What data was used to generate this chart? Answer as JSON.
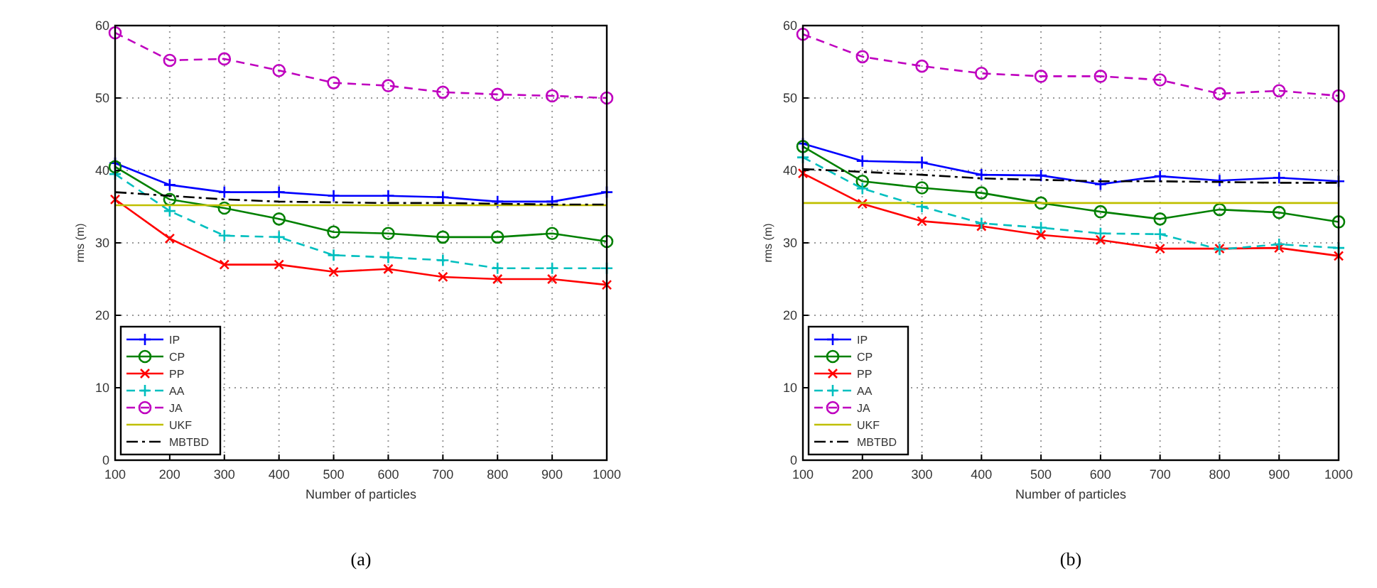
{
  "chart_data": [
    {
      "type": "line",
      "title": "(a)",
      "xlabel": "Number of particles",
      "ylabel": "rms (m)",
      "x": [
        100,
        200,
        300,
        400,
        500,
        600,
        700,
        800,
        900,
        1000
      ],
      "xlim": [
        100,
        1000
      ],
      "xticks": [
        100,
        200,
        300,
        400,
        500,
        600,
        700,
        800,
        900,
        1000
      ],
      "ylim": [
        0,
        60
      ],
      "yticks": [
        0,
        10,
        20,
        30,
        40,
        50,
        60
      ],
      "grid": true,
      "legend": "bottom left",
      "series": [
        {
          "name": "IP",
          "color": "#0000ff",
          "marker": "cross",
          "line_style": "solid",
          "values": [
            41,
            38,
            37,
            37,
            36.5,
            36.5,
            36.3,
            35.7,
            35.7,
            37
          ]
        },
        {
          "name": "CP",
          "color": "#008000",
          "marker": "circle",
          "line_style": "solid",
          "values": [
            40.5,
            36,
            34.8,
            33.3,
            31.5,
            31.3,
            30.8,
            30.8,
            31.3,
            30.2
          ]
        },
        {
          "name": "PP",
          "color": "#ff0000",
          "marker": "x",
          "line_style": "solid",
          "values": [
            36,
            30.6,
            27,
            27,
            26,
            26.4,
            25.3,
            25,
            25,
            24.2
          ]
        },
        {
          "name": "AA",
          "color": "#00bfbf",
          "marker": "cross",
          "line_style": "dashed",
          "values": [
            39.5,
            34.4,
            31,
            30.8,
            28.3,
            28,
            27.6,
            26.5,
            26.5,
            26.5
          ]
        },
        {
          "name": "JA",
          "color": "#bf00bf",
          "marker": "circle",
          "line_style": "dashed",
          "values": [
            59,
            55.2,
            55.4,
            53.8,
            52.1,
            51.7,
            50.8,
            50.5,
            50.3,
            50
          ]
        },
        {
          "name": "UKF",
          "color": "#bfbf00",
          "marker": "none",
          "line_style": "solid",
          "values": [
            35.2,
            35.2,
            35.2,
            35.2,
            35.2,
            35.2,
            35.2,
            35.2,
            35.2,
            35.2
          ]
        },
        {
          "name": "MBTBD",
          "color": "#000000",
          "marker": "none",
          "line_style": "dashdot",
          "values": [
            37,
            36.5,
            36,
            35.7,
            35.6,
            35.5,
            35.5,
            35.4,
            35.3,
            35.3
          ]
        }
      ]
    },
    {
      "type": "line",
      "title": "(b)",
      "xlabel": "Number of particles",
      "ylabel": "rms (m)",
      "x": [
        100,
        200,
        300,
        400,
        500,
        600,
        700,
        800,
        900,
        1000
      ],
      "xlim": [
        100,
        1000
      ],
      "xticks": [
        100,
        200,
        300,
        400,
        500,
        600,
        700,
        800,
        900,
        1000
      ],
      "ylim": [
        0,
        60
      ],
      "yticks": [
        0,
        10,
        20,
        30,
        40,
        50,
        60
      ],
      "grid": true,
      "legend": "bottom left",
      "series": [
        {
          "name": "IP",
          "color": "#0000ff",
          "marker": "cross",
          "line_style": "solid",
          "values": [
            43.7,
            41.3,
            41.1,
            39.4,
            39.3,
            38.1,
            39.2,
            38.6,
            39,
            38.5
          ]
        },
        {
          "name": "CP",
          "color": "#008000",
          "marker": "circle",
          "line_style": "solid",
          "values": [
            43.3,
            38.5,
            37.6,
            36.9,
            35.5,
            34.3,
            33.3,
            34.6,
            34.2,
            32.9
          ]
        },
        {
          "name": "PP",
          "color": "#ff0000",
          "marker": "x",
          "line_style": "solid",
          "values": [
            39.6,
            35.4,
            33,
            32.3,
            31.1,
            30.4,
            29.2,
            29.2,
            29.3,
            28.2
          ]
        },
        {
          "name": "AA",
          "color": "#00bfbf",
          "marker": "cross",
          "line_style": "dashed",
          "values": [
            41.8,
            37.5,
            35,
            32.7,
            32.1,
            31.3,
            31.2,
            29.1,
            29.8,
            29.3
          ]
        },
        {
          "name": "JA",
          "color": "#bf00bf",
          "marker": "circle",
          "line_style": "dashed",
          "values": [
            58.8,
            55.7,
            54.4,
            53.4,
            53,
            53,
            52.5,
            50.6,
            51,
            50.3
          ]
        },
        {
          "name": "UKF",
          "color": "#bfbf00",
          "marker": "none",
          "line_style": "solid",
          "values": [
            35.5,
            35.5,
            35.5,
            35.5,
            35.5,
            35.5,
            35.5,
            35.5,
            35.5,
            35.5
          ]
        },
        {
          "name": "MBTBD",
          "color": "#000000",
          "marker": "none",
          "line_style": "dashdot",
          "values": [
            40.2,
            39.8,
            39.4,
            38.9,
            38.7,
            38.5,
            38.5,
            38.4,
            38.3,
            38.3
          ]
        }
      ]
    }
  ]
}
